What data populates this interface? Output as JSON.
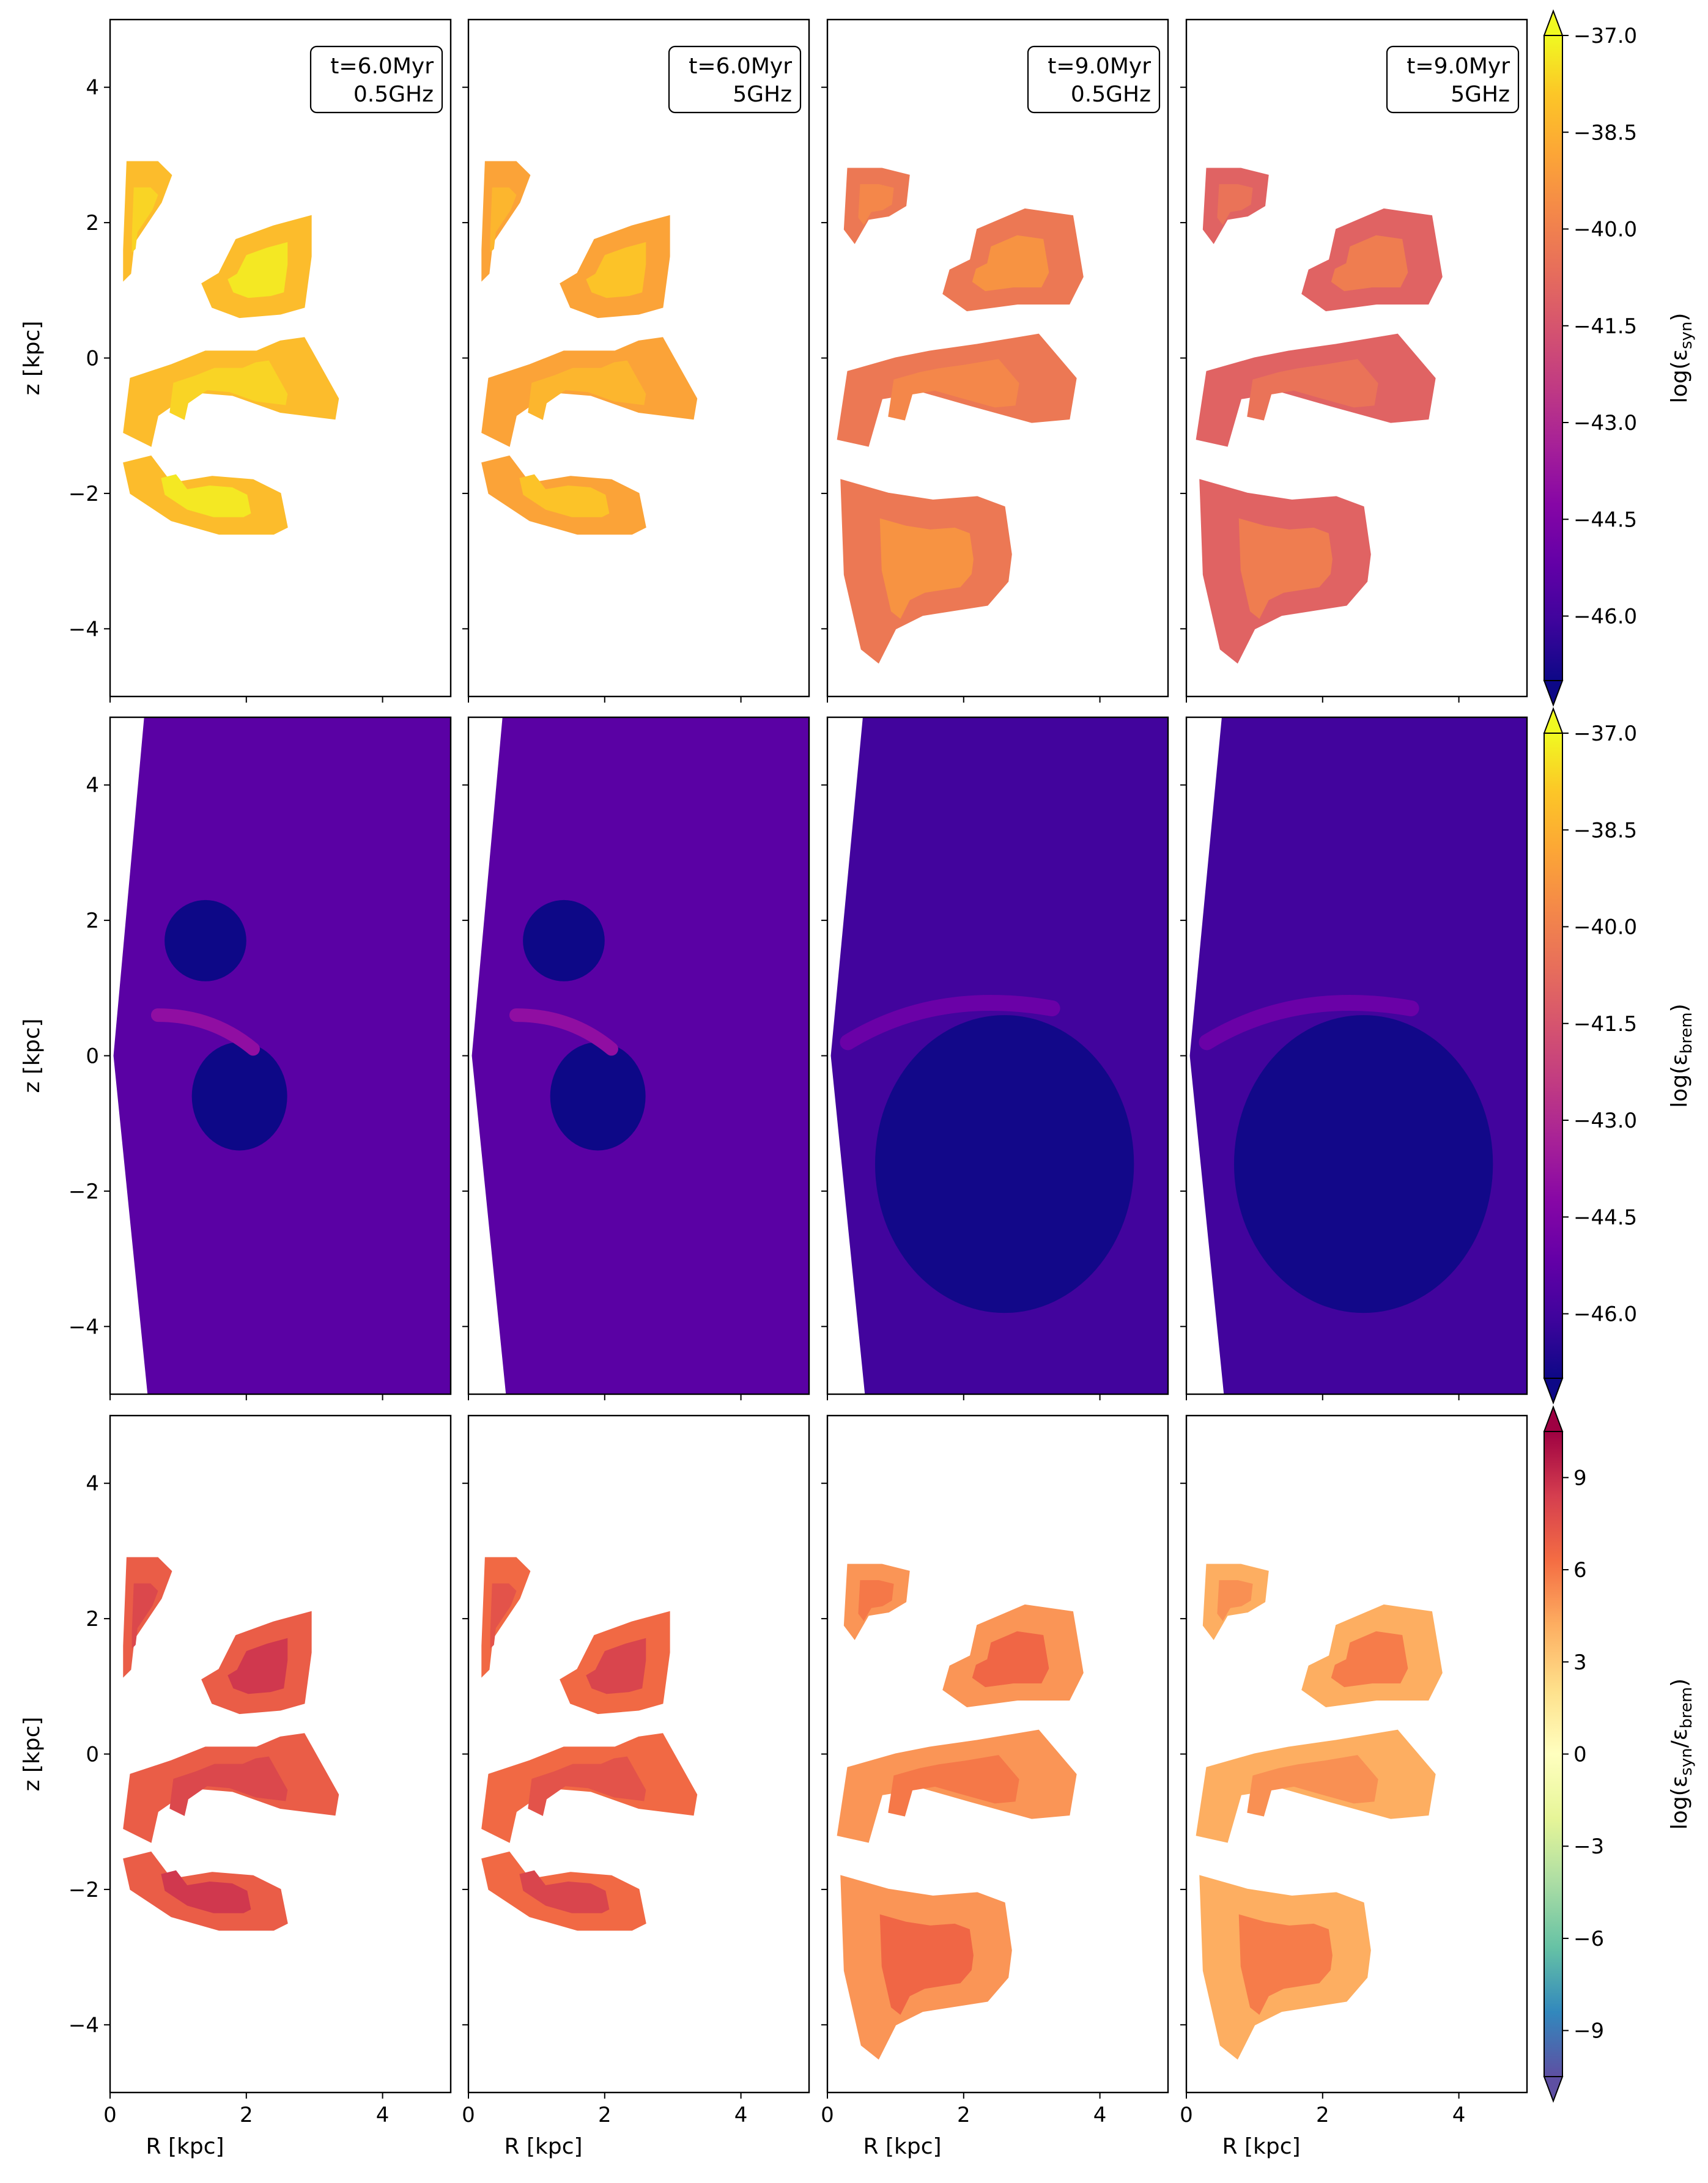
{
  "chart_data": {
    "type": "heatmap",
    "grid": false,
    "legend_placement": "right",
    "xlabel": "R [kpc]",
    "ylabel": "z [kpc]",
    "xlim": [
      0,
      5
    ],
    "ylim": [
      -5,
      5
    ],
    "x_ticks": [
      0,
      2,
      4
    ],
    "y_ticks": [
      -4,
      -2,
      0,
      2,
      4
    ],
    "x_tick_labels": [
      "0",
      "2",
      "4"
    ],
    "y_tick_labels": [
      "−4",
      "−2",
      "0",
      "2",
      "4"
    ],
    "panel_labels": [
      {
        "line1": "t=6.0Myr",
        "line2": "0.5GHz"
      },
      {
        "line1": "t=6.0Myr",
        "line2": "5GHz"
      },
      {
        "line1": "t=9.0Myr",
        "line2": "0.5GHz"
      },
      {
        "line1": "t=9.0Myr",
        "line2": "5GHz"
      }
    ],
    "rows": [
      {
        "quantity": "log(εsyn)",
        "colorbar_label_base": "log(ε",
        "colorbar_label_sub": "syn",
        "colorbar_label_end": ")",
        "colormap": "plasma",
        "colorbar_range": [
          -47,
          -37
        ],
        "colorbar_ticks": [
          -37.0,
          -38.5,
          -40.0,
          -41.5,
          -43.0,
          -44.5,
          -46.0
        ],
        "colorbar_tick_labels": [
          "−37.0",
          "−38.5",
          "−40.0",
          "−41.5",
          "−43.0",
          "−44.5",
          "−46.0"
        ],
        "panel_typical_values": [
          -38.2,
          -38.9,
          -40.3,
          -41.0
        ]
      },
      {
        "quantity": "log(εbrem)",
        "colorbar_label_base": "log(ε",
        "colorbar_label_sub": "brem",
        "colorbar_label_end": ")",
        "colormap": "plasma",
        "colorbar_range": [
          -47,
          -37
        ],
        "colorbar_ticks": [
          -37.0,
          -38.5,
          -40.0,
          -41.5,
          -43.0,
          -44.5,
          -46.0
        ],
        "colorbar_tick_labels": [
          "−37.0",
          "−38.5",
          "−40.0",
          "−41.5",
          "−43.0",
          "−44.5",
          "−46.0"
        ],
        "panel_typical_values": [
          -45.7,
          -45.7,
          -46.4,
          -46.4
        ]
      },
      {
        "quantity": "log(εsyn/εbrem)",
        "colorbar_label_base": "log(ε",
        "colorbar_label_sub": "syn",
        "colorbar_label_mid": "/ε",
        "colorbar_label_sub2": "brem",
        "colorbar_label_end": ")",
        "colormap": "spectral",
        "colorbar_range": [
          -10.5,
          10.5
        ],
        "colorbar_ticks": [
          9,
          6,
          3,
          0,
          -3,
          -6,
          -9
        ],
        "colorbar_tick_labels": [
          "9",
          "6",
          "3",
          "0",
          "−3",
          "−6",
          "−9"
        ],
        "panel_typical_values": [
          7.0,
          6.5,
          5.0,
          4.2
        ]
      }
    ]
  },
  "colors": {
    "plasma": [
      "#0d0887",
      "#3e049c",
      "#6300a7",
      "#8606a6",
      "#a62098",
      "#c03a83",
      "#d5536f",
      "#e76e5b",
      "#f48849",
      "#fca636",
      "#fcc627",
      "#f0f921"
    ],
    "spectral": [
      "#5e4fa2",
      "#3288bd",
      "#66c2a5",
      "#abdda4",
      "#e6f598",
      "#ffffbf",
      "#fee08b",
      "#fdae61",
      "#f46d43",
      "#d53e4f",
      "#9e0142"
    ]
  }
}
